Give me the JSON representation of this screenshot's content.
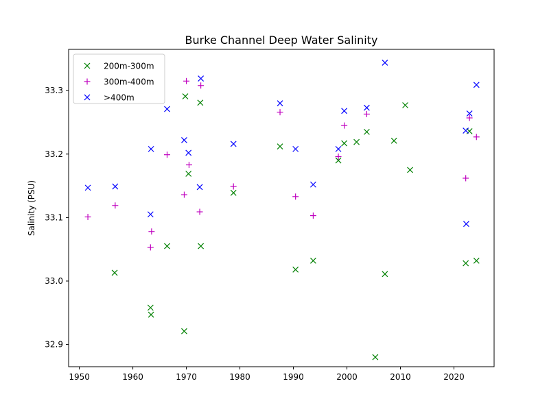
{
  "chart_data": {
    "type": "scatter",
    "title": "Burke Channel Deep Water Salinity",
    "xlabel": "",
    "ylabel": "Salinity (PSU)",
    "xlim": [
      1948.0,
      2027.5
    ],
    "ylim": [
      32.865,
      33.365
    ],
    "xticks": [
      1950,
      1960,
      1970,
      1980,
      1990,
      2000,
      2010,
      2020
    ],
    "xtick_labels": [
      "1950",
      "1960",
      "1970",
      "1980",
      "1990",
      "2000",
      "2010",
      "2020"
    ],
    "yticks": [
      32.9,
      33.0,
      33.1,
      33.2,
      33.3
    ],
    "ytick_labels": [
      "32.9",
      "33.0",
      "33.1",
      "33.2",
      "33.3"
    ],
    "grid": false,
    "legend_position": "upper-left",
    "series": [
      {
        "name": "200m-300m",
        "marker": "x",
        "color": "#008000",
        "x": [
          1956.6,
          1963.3,
          1963.4,
          1966.4,
          1969.6,
          1969.8,
          1970.4,
          1972.6,
          1972.7,
          1978.8,
          1987.5,
          1990.4,
          1993.7,
          1998.4,
          1999.5,
          2001.8,
          2003.7,
          2005.3,
          2007.1,
          2008.8,
          2010.9,
          2011.8,
          2022.2,
          2022.9,
          2024.2
        ],
        "y": [
          33.013,
          32.958,
          32.947,
          33.055,
          32.921,
          33.291,
          33.169,
          33.281,
          33.055,
          33.139,
          33.212,
          33.018,
          33.032,
          33.19,
          33.217,
          33.219,
          33.235,
          32.88,
          33.011,
          33.221,
          33.277,
          33.175,
          33.028,
          33.236,
          33.032
        ]
      },
      {
        "name": "300m-400m",
        "marker": "+",
        "color": "#bf00bf",
        "x": [
          1951.6,
          1956.7,
          1963.3,
          1963.5,
          1966.4,
          1969.6,
          1970.0,
          1970.5,
          1972.5,
          1972.7,
          1978.8,
          1987.5,
          1990.4,
          1993.7,
          1998.4,
          1999.5,
          2003.7,
          2022.2,
          2022.9,
          2024.2
        ],
        "y": [
          33.101,
          33.119,
          33.053,
          33.078,
          33.199,
          33.136,
          33.315,
          33.183,
          33.109,
          33.308,
          33.149,
          33.266,
          33.133,
          33.103,
          33.196,
          33.245,
          33.263,
          33.162,
          33.257,
          33.227
        ]
      },
      {
        "name": ">400m",
        "marker": "x",
        "color": "#0000ff",
        "x": [
          1951.6,
          1956.7,
          1963.3,
          1963.4,
          1966.4,
          1969.6,
          1970.4,
          1972.5,
          1972.7,
          1978.8,
          1987.5,
          1990.4,
          1993.7,
          1998.4,
          1999.5,
          2003.7,
          2007.1,
          2022.2,
          2022.3,
          2022.9,
          2024.2
        ],
        "y": [
          33.147,
          33.149,
          33.105,
          33.208,
          33.271,
          33.222,
          33.202,
          33.148,
          33.319,
          33.216,
          33.28,
          33.208,
          33.152,
          33.208,
          33.268,
          33.273,
          33.344,
          33.237,
          33.09,
          33.264,
          33.309
        ]
      }
    ]
  }
}
